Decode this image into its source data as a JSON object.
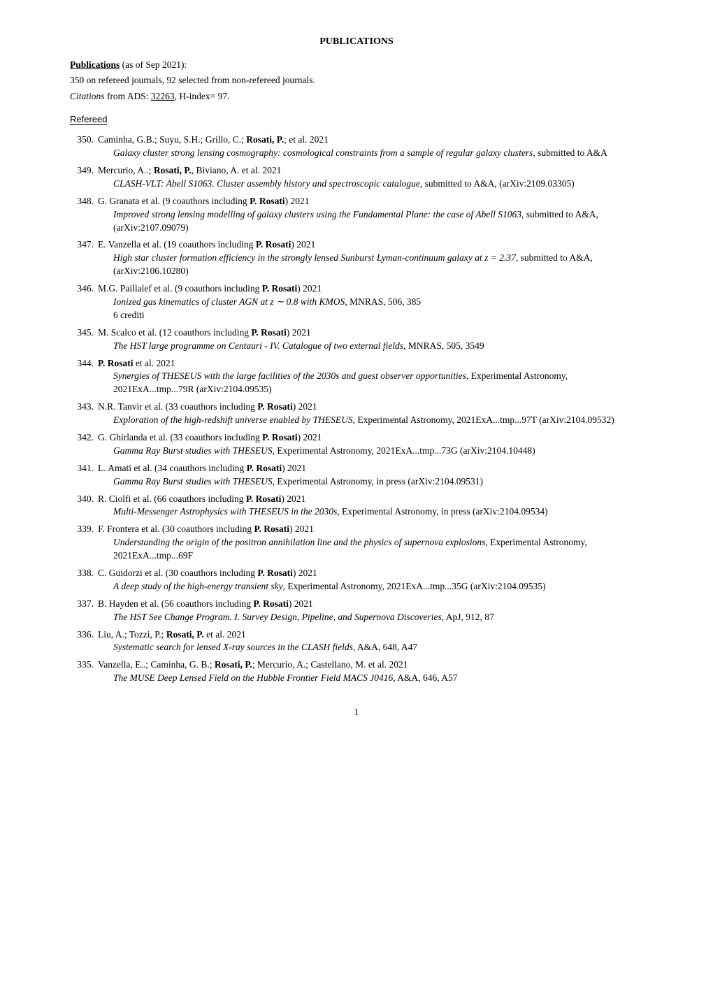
{
  "heading": "PUBLICATIONS",
  "intro": {
    "label": "Publications",
    "asof": " (as of Sep 2021):",
    "line2": "350 on refereed journals, 92 selected from non-refereed journals.",
    "citations_word": "Citations",
    "citations_rest": " from ADS: ",
    "citations_num": "32263",
    "citations_tail": ", H-index= 97."
  },
  "refereed_label": "Refereed",
  "pubs": [
    {
      "n": "350.",
      "authors_pre": "Caminha, G.B.; Suyu, S.H.; Grillo, C.; ",
      "authors_bold": "Rosati, P.",
      "authors_post": "; et al. 2021",
      "title": "Galaxy cluster strong lensing cosmography: cosmological constraints from a sample of regular galaxy clusters",
      "tail": ", submitted to A&A"
    },
    {
      "n": "349.",
      "authors_pre": "Mercurio, A..; ",
      "authors_bold": "Rosati, P.",
      "authors_post": ", Biviano, A. et al. 2021",
      "title": "CLASH-VLT: Abell S1063. Cluster assembly history and spectroscopic catalogue",
      "tail": ", submitted to A&A, (arXiv:2109.03305)"
    },
    {
      "n": "348.",
      "authors_pre": "G. Granata et al. (9 coauthors including ",
      "authors_bold": "P. Rosati",
      "authors_post": ") 2021",
      "title": "Improved strong lensing modelling of galaxy clusters using the Fundamental Plane: the case of Abell S1063",
      "tail": ", submitted to A&A, (arXiv:2107.09079)"
    },
    {
      "n": "347.",
      "authors_pre": "E. Vanzella et al. (19 coauthors including ",
      "authors_bold": "P. Rosati",
      "authors_post": ") 2021",
      "title": "High star cluster formation efficiency in the strongly lensed Sunburst Lyman-continuum galaxy at z = 2.37",
      "tail": ", submitted to A&A, (arXiv:2106.10280)"
    },
    {
      "n": "346.",
      "authors_pre": "M.G. Paillalef et al. (9 coauthors including ",
      "authors_bold": "P. Rosati",
      "authors_post": ") 2021",
      "title": "Ionized gas kinematics of cluster AGN at z ∼ 0.8 with KMOS",
      "tail": ", MNRAS, 506, 385",
      "extra": "6 crediti"
    },
    {
      "n": "345.",
      "authors_pre": "M. Scalco et al. (12 coauthors including ",
      "authors_bold": "P. Rosati",
      "authors_post": ") 2021",
      "title": "The HST large programme on  Centauri - IV. Catalogue of two external fields",
      "tail": ", MNRAS, 505, 3549"
    },
    {
      "n": "344.",
      "authors_pre": "",
      "authors_bold": "P. Rosati",
      "authors_post": " et al.  2021",
      "title": "Synergies of THESEUS with the large facilities of the 2030s and guest observer opportunities",
      "tail": ", Experimental Astronomy, 2021ExA...tmp...79R (arXiv:2104.09535)"
    },
    {
      "n": "343.",
      "authors_pre": "N.R. Tanvir et al. (33 coauthors including ",
      "authors_bold": "P. Rosati",
      "authors_post": ") 2021",
      "title": "Exploration of the high-redshift universe enabled by THESEUS",
      "tail": ", Experimental Astronomy, 2021ExA...tmp...97T (arXiv:2104.09532)"
    },
    {
      "n": "342.",
      "authors_pre": "G. Ghirlanda et al. (33 coauthors including ",
      "authors_bold": "P. Rosati",
      "authors_post": ") 2021",
      "title": "Gamma Ray Burst studies with THESEUS",
      "tail": ", Experimental Astronomy, 2021ExA...tmp...73G (arXiv:2104.10448)"
    },
    {
      "n": "341.",
      "authors_pre": "L. Amati et al. (34 coauthors including ",
      "authors_bold": "P. Rosati",
      "authors_post": ") 2021",
      "title": "Gamma Ray Burst studies with THESEUS",
      "tail": ", Experimental Astronomy, in press (arXiv:2104.09531)"
    },
    {
      "n": "340.",
      "authors_pre": "R. Ciolfi et al. (66 coauthors including ",
      "authors_bold": "P. Rosati",
      "authors_post": ") 2021",
      "title": "Multi-Messenger Astrophysics with THESEUS in the 2030s",
      "tail": ", Experimental Astronomy, in press (arXiv:2104.09534)"
    },
    {
      "n": "339.",
      "authors_pre": "F. Frontera et al. (30 coauthors including ",
      "authors_bold": "P. Rosati",
      "authors_post": ") 2021",
      "title": "Understanding the origin of the positron annihilation line and the physics of supernova explosions",
      "tail": ", Experimental Astronomy, 2021ExA...tmp...69F"
    },
    {
      "n": "338.",
      "authors_pre": "C. Guidorzi et al. (30 coauthors including ",
      "authors_bold": "P. Rosati",
      "authors_post": ") 2021",
      "title": "A deep study of the high-energy transient sky",
      "tail": ", Experimental Astronomy, 2021ExA...tmp...35G (arXiv:2104.09535)"
    },
    {
      "n": "337.",
      "authors_pre": "B. Hayden et al. (56 coauthors including ",
      "authors_bold": "P. Rosati",
      "authors_post": ") 2021",
      "title": "The HST See Change Program. I. Survey Design, Pipeline, and Supernova Discoveries",
      "tail": ", ApJ, 912, 87"
    },
    {
      "n": "336.",
      "authors_pre": "Liu, A.; Tozzi, P.; ",
      "authors_bold": "Rosati, P.",
      "authors_post": " et al. 2021",
      "title": "Systematic search for lensed X-ray sources in the CLASH fields",
      "tail": ", A&A, 648, A47"
    },
    {
      "n": "335.",
      "authors_pre": "Vanzella, E..; Caminha, G. B.; ",
      "authors_bold": "Rosati, P.",
      "authors_post": "; Mercurio, A.; Castellano, M. et al. 2021",
      "title": "The MUSE Deep Lensed Field on the Hubble Frontier Field MACS J0416",
      "tail": ", A&A, 646, A57"
    }
  ],
  "page_number": "1"
}
